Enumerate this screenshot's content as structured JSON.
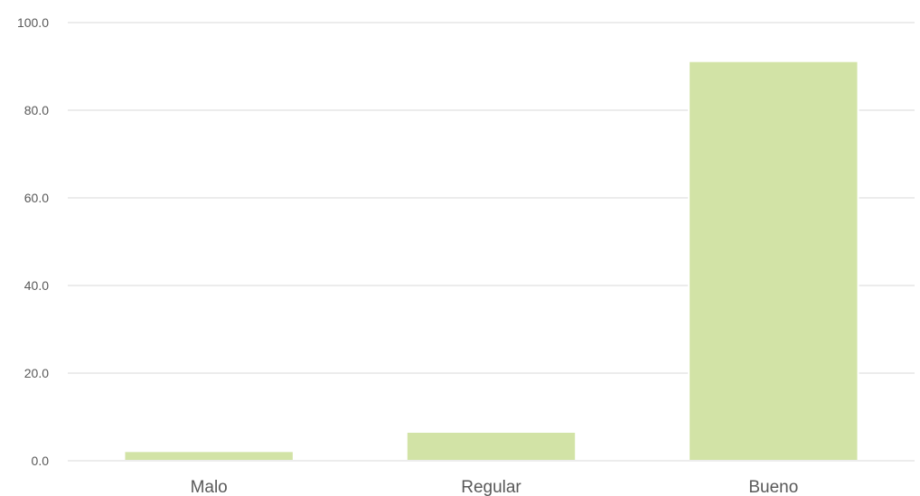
{
  "chart_data": {
    "type": "bar",
    "categories": [
      "Malo",
      "Regular",
      "Bueno"
    ],
    "values": [
      2.2,
      6.6,
      91.2
    ],
    "title": "",
    "xlabel": "",
    "ylabel": "",
    "ylim": [
      0,
      100
    ],
    "yticks": [
      "0.0",
      "20.0",
      "40.0",
      "60.0",
      "80.0",
      "100.0"
    ],
    "grid": true,
    "legend": "none",
    "bar_color": "#d2e3a6"
  }
}
